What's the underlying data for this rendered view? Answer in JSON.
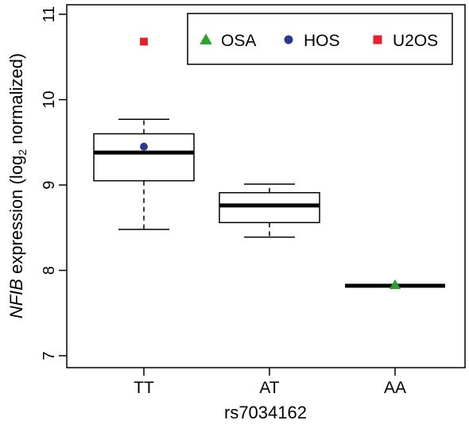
{
  "chart_data": {
    "type": "box",
    "xlabel": "rs7034162",
    "ylabel": {
      "italic": "NFIB",
      "pre": " expression (log",
      "sub": "2",
      "post": " normalized)"
    },
    "ylim": [
      6.9,
      11.1
    ],
    "yticks": [
      7,
      8,
      9,
      10,
      11
    ],
    "categories": [
      "TT",
      "AT",
      "AA"
    ],
    "boxes": [
      {
        "category": "TT",
        "whisker_low": 8.48,
        "q1": 9.05,
        "median": 9.38,
        "q3": 9.6,
        "whisker_high": 9.77
      },
      {
        "category": "AT",
        "whisker_low": 8.39,
        "q1": 8.56,
        "median": 8.76,
        "q3": 8.91,
        "whisker_high": 9.01
      },
      {
        "category": "AA",
        "whisker_low": 7.82,
        "q1": 7.82,
        "median": 7.82,
        "q3": 7.82,
        "whisker_high": 7.82
      }
    ],
    "series": [
      {
        "name": "OSA",
        "marker": "triangle",
        "color": "#2ca02c",
        "points": [
          {
            "category": "AA",
            "y": 7.83
          }
        ]
      },
      {
        "name": "HOS",
        "marker": "circle",
        "color": "#2b3990",
        "points": [
          {
            "category": "TT",
            "y": 9.45
          }
        ]
      },
      {
        "name": "U2OS",
        "marker": "square",
        "color": "#e8202a",
        "points": [
          {
            "category": "TT",
            "y": 10.68
          }
        ]
      }
    ],
    "legend": {
      "placement": "top-right",
      "entries": [
        "OSA",
        "HOS",
        "U2OS"
      ]
    },
    "grid": false
  }
}
